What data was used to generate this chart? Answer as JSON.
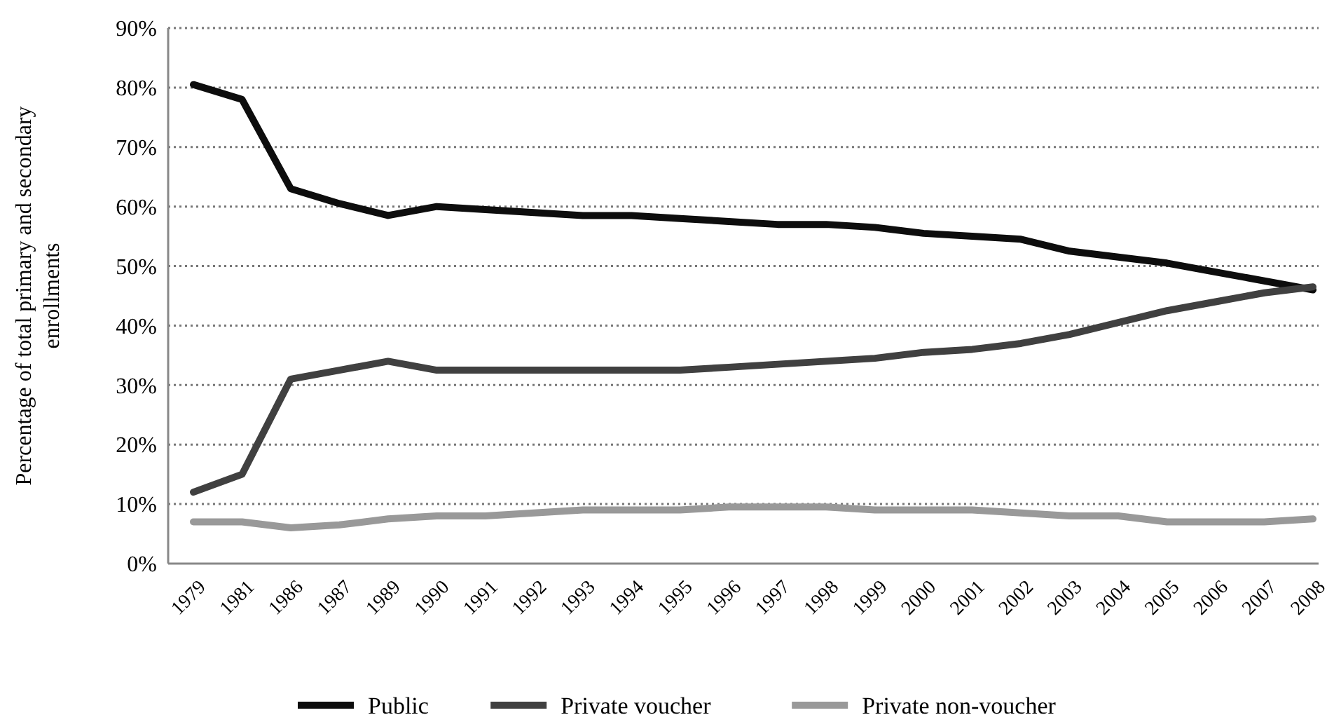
{
  "chart_data": {
    "type": "line",
    "ylabel": "Percentage of total primary and secondary enrollments",
    "categories": [
      "1979",
      "1981",
      "1986",
      "1987",
      "1989",
      "1990",
      "1991",
      "1992",
      "1993",
      "1994",
      "1995",
      "1996",
      "1997",
      "1998",
      "1999",
      "2000",
      "2001",
      "2002",
      "2003",
      "2004",
      "2005",
      "2006",
      "2007",
      "2008"
    ],
    "series": [
      {
        "name": "Public",
        "color": "#0d0d0d",
        "values": [
          80.5,
          78,
          63,
          60.5,
          58.5,
          60,
          59.5,
          59,
          58.5,
          58.5,
          58,
          57.5,
          57,
          57,
          56.5,
          55.5,
          55,
          54.5,
          52.5,
          51.5,
          50.5,
          49,
          47.5,
          46
        ]
      },
      {
        "name": "Private voucher",
        "color": "#404040",
        "values": [
          12,
          15,
          31,
          32.5,
          34,
          32.5,
          32.5,
          32.5,
          32.5,
          32.5,
          32.5,
          33,
          33.5,
          34,
          34.5,
          35.5,
          36,
          37,
          38.5,
          40.5,
          42.5,
          44,
          45.5,
          46.5
        ]
      },
      {
        "name": "Private non-voucher",
        "color": "#999999",
        "values": [
          7,
          7,
          6,
          6.5,
          7.5,
          8,
          8,
          8.5,
          9,
          9,
          9,
          9.5,
          9.5,
          9.5,
          9,
          9,
          9,
          8.5,
          8,
          8,
          7,
          7,
          7,
          7.5
        ]
      }
    ],
    "ylim": [
      0,
      90
    ],
    "yticks": [
      {
        "value": 0,
        "label": "0%"
      },
      {
        "value": 10,
        "label": "10%"
      },
      {
        "value": 20,
        "label": "20%"
      },
      {
        "value": 30,
        "label": "30%"
      },
      {
        "value": 40,
        "label": "40%"
      },
      {
        "value": 50,
        "label": "50%"
      },
      {
        "value": 60,
        "label": "60%"
      },
      {
        "value": 70,
        "label": "70%"
      },
      {
        "value": 80,
        "label": "80%"
      },
      {
        "value": 90,
        "label": "90%"
      }
    ],
    "grid": "y",
    "legend": "bottom",
    "marker": "none",
    "line_style": "solid"
  }
}
